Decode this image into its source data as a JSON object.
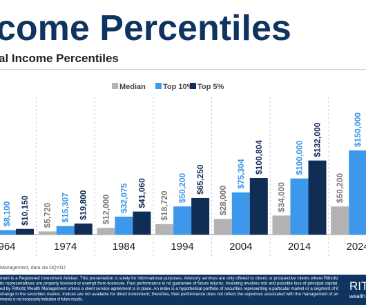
{
  "chart_data": {
    "type": "bar",
    "title": "come Percentiles",
    "subtitle": "al Income Percentiles",
    "categories": [
      "964",
      "1974",
      "1984",
      "1994",
      "2004",
      "2014",
      "2024"
    ],
    "series": [
      {
        "name": "Median",
        "color": "#b3b3b3",
        "label_color": "#7a7a7a",
        "values": [
          null,
          5720,
          12000,
          18720,
          28000,
          34000,
          50200
        ],
        "value_labels": [
          null,
          "$5,720",
          "$12,000",
          "$18,720",
          "$28,000",
          "$34,000",
          "$50,200"
        ]
      },
      {
        "name": "Top 10%",
        "color": "#3d97ea",
        "label_color": "#3d97ea",
        "values": [
          8100,
          15307,
          32075,
          50200,
          75304,
          100000,
          150000
        ],
        "value_labels": [
          "$8,100",
          "$15,307",
          "$32,075",
          "$50,200",
          "$75,304",
          "$100,000",
          "$150,000"
        ]
      },
      {
        "name": "Top 5%",
        "color": "#0f2d55",
        "label_color": "#0f2d55",
        "values": [
          10150,
          19800,
          41060,
          65250,
          100804,
          132000,
          null
        ],
        "value_labels": [
          "$10,150",
          "$19,800",
          "$41,060",
          "$65,250",
          "$100,804",
          "$132,000",
          null
        ]
      }
    ]
  },
  "footer": {
    "source": "Management, data via DQYDJ",
    "disclaimer": [
      "ment is a Registered Investment Adviser. This presentation is solely for informational purposes. Advisory services are only offered to clients or prospective clients where Ritholtz",
      " its representatives are properly licensed or exempt from licensure. Past performance is no guarantee of future returns. Investing involves risk and possible loss of principal capital.",
      "ed by Ritholtz Wealth Management unless a client service agreement is in place. An index is a hypothetical portfolio of securities representing a particular market or a segment of it",
      "change in the securities market. Indices are not available for direct investment; therefore, their performance does not reflect the expenses associated with the management of an",
      "rmance is not necessarily indicative of future results."
    ],
    "logo": "RIT",
    "logo_sub": "wealth"
  }
}
